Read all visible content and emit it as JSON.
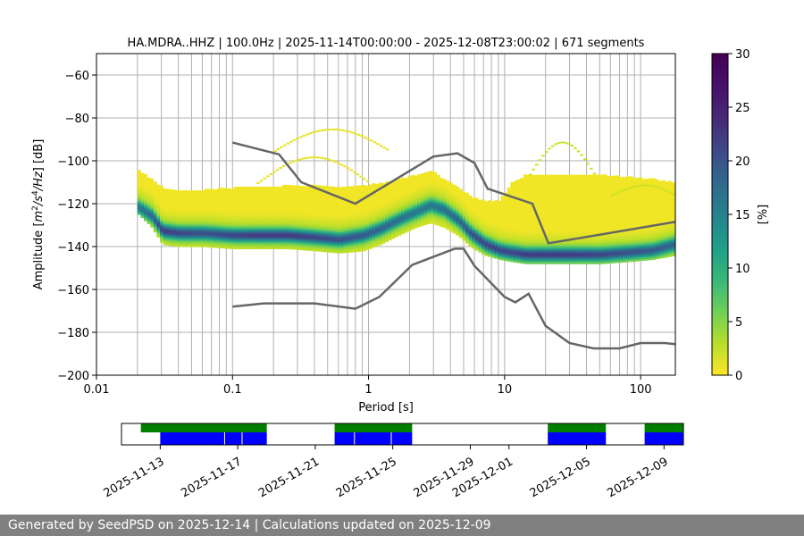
{
  "chart_data": [
    {
      "type": "heatmap",
      "title": "HA.MDRA..HHZ | 100.0Hz | 2025-11-14T00:00:00 - 2025-12-08T23:00:02 | 671 segments",
      "xlabel": "Period [s]",
      "ylabel_parts": [
        "Amplitude [",
        "m",
        "2",
        "/s",
        "4",
        "/Hz",
        "] [dB]"
      ],
      "xscale": "log",
      "xlim": [
        0.01,
        180
      ],
      "ylim": [
        -200,
        -50
      ],
      "xticks": [
        0.01,
        0.1,
        1,
        10,
        100
      ],
      "xtick_labels": [
        "0.01",
        "0.1",
        "1",
        "10",
        "100"
      ],
      "yticks": [
        -200,
        -180,
        -160,
        -140,
        -120,
        -100,
        -80,
        -60
      ],
      "ytick_labels": [
        "−200",
        "−180",
        "−160",
        "−140",
        "−120",
        "−100",
        "−80",
        "−60"
      ],
      "grid": true,
      "colormap": "viridis_r",
      "colorbar": {
        "label": "[%]",
        "range": [
          0,
          30
        ],
        "ticks": [
          0,
          5,
          10,
          15,
          20,
          25,
          30
        ],
        "tick_labels": [
          "0",
          "5",
          "10",
          "15",
          "20",
          "25",
          "30"
        ]
      },
      "mode_curve": {
        "period": [
          0.02,
          0.025,
          0.03,
          0.04,
          0.06,
          0.1,
          0.15,
          0.25,
          0.4,
          0.6,
          0.9,
          1.2,
          1.6,
          2.2,
          2.8,
          3.5,
          4.5,
          5.5,
          7,
          9,
          11,
          14,
          20,
          30,
          50,
          80,
          120,
          180
        ],
        "db": [
          -121,
          -125,
          -132,
          -133,
          -133,
          -134,
          -134,
          -134,
          -135,
          -136,
          -134,
          -131,
          -127,
          -123,
          -120,
          -122,
          -127,
          -133,
          -138,
          -141,
          -142,
          -143,
          -143,
          -143,
          -143,
          -142,
          -141,
          -138
        ]
      },
      "density": {
        "period": [
          0.02,
          0.025,
          0.03,
          0.04,
          0.06,
          0.1,
          0.15,
          0.25,
          0.4,
          0.6,
          0.9,
          1.2,
          1.6,
          2.2,
          2.8,
          3.5,
          4.5,
          5.5,
          7,
          9,
          11,
          14,
          20,
          30,
          50,
          80,
          120,
          180
        ],
        "upper_db": [
          -104,
          -108,
          -112,
          -113,
          -113,
          -112,
          -112,
          -111,
          -111,
          -112,
          -111,
          -110,
          -108,
          -106,
          -104,
          -108,
          -112,
          -116,
          -118,
          -118,
          -110,
          -106,
          -106,
          -106,
          -106,
          -107,
          -108,
          -110
        ],
        "lower_db": [
          -124,
          -130,
          -138,
          -139,
          -139,
          -140,
          -140,
          -140,
          -141,
          -142,
          -141,
          -138,
          -134,
          -130,
          -128,
          -130,
          -134,
          -139,
          -143,
          -145,
          -146,
          -147,
          -147,
          -147,
          -147,
          -146,
          -145,
          -143
        ],
        "peak_percent": [
          12,
          14,
          18,
          17,
          16,
          17,
          18,
          18,
          17,
          16,
          15,
          14,
          13,
          12,
          12,
          13,
          14,
          16,
          17,
          17,
          17,
          18,
          18,
          18,
          17,
          16,
          15,
          14
        ]
      },
      "arcs": [
        {
          "p_start": 0.2,
          "p_end": 1.4,
          "db_min": -95,
          "db_peak": -85,
          "percent": 1
        },
        {
          "p_start": 0.15,
          "p_end": 1.0,
          "db_min": -110,
          "db_peak": -98,
          "percent": 1
        },
        {
          "p_start": 15,
          "p_end": 45,
          "db_min": -106,
          "db_peak": -91,
          "percent": 2
        },
        {
          "p_start": 60,
          "p_end": 180,
          "db_min": -116,
          "db_peak": -111,
          "percent": 2
        }
      ],
      "series": [
        {
          "name": "",
          "color": "#666666",
          "x": [
            0.1,
            0.22,
            0.32,
            0.8,
            3,
            4.5,
            6,
            7.5,
            16,
            21,
            180
          ],
          "y": [
            -91.5,
            -97,
            -110,
            -120,
            -98,
            -96.5,
            -101,
            -113,
            -120,
            -138.5,
            -128.5
          ]
        },
        {
          "name": "",
          "color": "#666666",
          "x": [
            0.1,
            0.17,
            0.4,
            0.8,
            1.2,
            2.1,
            4.3,
            5.0,
            6.0,
            10,
            12,
            15,
            20,
            30,
            45,
            70,
            100,
            150,
            180
          ],
          "y": [
            -168,
            -166.5,
            -166.5,
            -169,
            -163.5,
            -148.5,
            -141,
            -141,
            -149,
            -163.5,
            -166,
            -162,
            -177,
            -185,
            -187.5,
            -187.5,
            -185,
            -185,
            -185.5
          ]
        }
      ]
    },
    {
      "type": "bar",
      "xlim": [
        "2025-11-11",
        "2025-12-10"
      ],
      "xtick_labels": [
        "2025-11-13",
        "2025-11-17",
        "2025-11-21",
        "2025-11-25",
        "2025-11-29",
        "2025-12-01",
        "2025-12-05",
        "2025-12-09"
      ],
      "xticks": [
        "2025-11-13",
        "2025-11-17",
        "2025-11-21",
        "2025-11-25",
        "2025-11-29",
        "2025-12-01",
        "2025-12-05",
        "2025-12-09"
      ],
      "colors": {
        "data": "#008000",
        "psd": "#0000ff"
      },
      "data_spans": [
        [
          "2025-11-12",
          "2025-11-18.5"
        ],
        [
          "2025-11-22",
          "2025-11-26"
        ],
        [
          "2025-12-03",
          "2025-12-06"
        ],
        [
          "2025-12-08",
          "2025-12-10"
        ]
      ],
      "psd_spans": [
        [
          "2025-11-13",
          "2025-11-18.5"
        ],
        [
          "2025-11-22",
          "2025-11-26"
        ],
        [
          "2025-12-03",
          "2025-12-06"
        ],
        [
          "2025-12-08",
          "2025-12-10"
        ]
      ],
      "psd_gaps": [
        "2025-11-16.3",
        "2025-11-17.2",
        "2025-11-23",
        "2025-11-24.9"
      ]
    }
  ],
  "footer": {
    "text": "Generated by SeedPSD on 2025-12-14 | Calculations updated on 2025-12-09"
  }
}
